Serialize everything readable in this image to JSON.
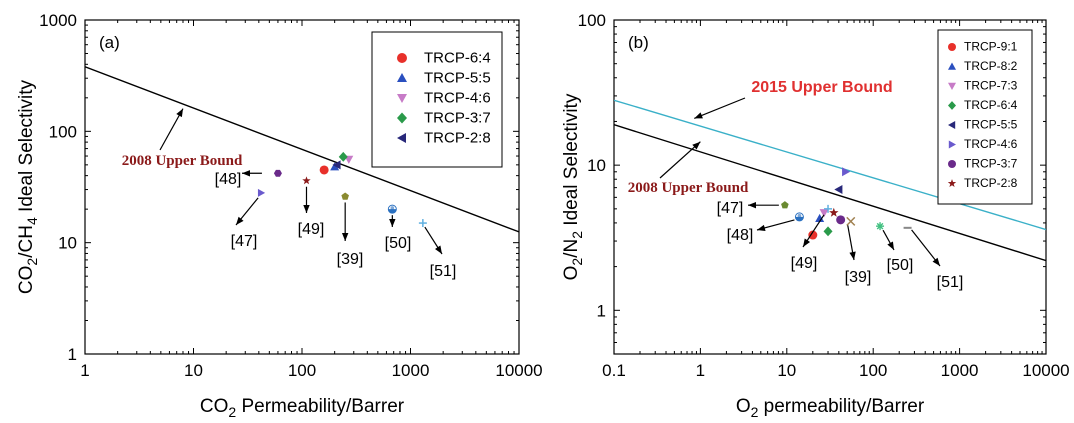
{
  "chart_data": [
    {
      "type": "scatter",
      "panel_label": "(a)",
      "xlabel": {
        "pre": "CO",
        "sub": "2",
        "post": " Permeability/Barrer"
      },
      "ylabel": {
        "p1": "CO",
        "s1": "2",
        "p2": "/CH",
        "s2": "4",
        "p3": " Ideal Selectivity"
      },
      "x_scale": "log",
      "y_scale": "log",
      "xlim": [
        1,
        10000
      ],
      "ylim": [
        1,
        1000
      ],
      "x_ticks": [
        "1",
        "10",
        "100",
        "1000",
        "10000"
      ],
      "y_ticks": [
        "1",
        "10",
        "100",
        "1000"
      ],
      "grid": false,
      "legend_position": "top-right",
      "series": [
        {
          "name": "TRCP-6:4",
          "marker": "circle",
          "color": "#e8302a",
          "points": [
            [
              160,
              45
            ]
          ]
        },
        {
          "name": "TRCP-5:5",
          "marker": "triangle-up",
          "color": "#2a4fbf",
          "points": [
            [
              200,
              48
            ]
          ]
        },
        {
          "name": "TRCP-4:6",
          "marker": "triangle-down",
          "color": "#c77bc7",
          "points": [
            [
              270,
              56
            ]
          ]
        },
        {
          "name": "TRCP-3:7",
          "marker": "diamond",
          "color": "#2a9a4a",
          "points": [
            [
              240,
              59
            ]
          ]
        },
        {
          "name": "TRCP-2:8",
          "marker": "triangle-left",
          "color": "#28287a",
          "points": [
            [
              210,
              50
            ]
          ]
        }
      ],
      "references": [
        {
          "label": "[48]",
          "x": 60,
          "y": 42,
          "marker": "hexagon",
          "color": "#6a2a8a"
        },
        {
          "label": "[47]",
          "x": 42,
          "y": 28,
          "marker": "triangle-right",
          "color": "#6a5acd"
        },
        {
          "label": "[49]",
          "x": 110,
          "y": 36,
          "marker": "star",
          "color": "#8b1a1a"
        },
        {
          "label": "[39]",
          "x": 250,
          "y": 26,
          "marker": "pentagon",
          "color": "#8a8a30"
        },
        {
          "label": "[50]",
          "x": 680,
          "y": 20,
          "marker": "half-circle",
          "color": "#2a70c0"
        },
        {
          "label": "[51]",
          "x": 1300,
          "y": 15,
          "marker": "plus",
          "color": "#60b0e0"
        }
      ],
      "bounds": [
        {
          "label": "2008 Upper Bound",
          "color": "#000000",
          "points": [
            [
              1,
              380
            ],
            [
              10000,
              12.5
            ]
          ]
        }
      ]
    },
    {
      "type": "scatter",
      "panel_label": "(b)",
      "xlabel": {
        "pre": "O",
        "sub": "2",
        "post": " permeability/Barrer"
      },
      "ylabel": {
        "p1": "O",
        "s1": "2",
        "p2": "/N",
        "s2": "2",
        "p3": "  Ideal Selectivity"
      },
      "x_scale": "log",
      "y_scale": "log",
      "xlim": [
        0.1,
        10000
      ],
      "ylim": [
        0.5,
        100
      ],
      "x_ticks": [
        "0.1",
        "1",
        "10",
        "100",
        "1000",
        "10000"
      ],
      "y_ticks": [
        "1",
        "10",
        "100"
      ],
      "grid": false,
      "legend_position": "top-right",
      "series": [
        {
          "name": "TRCP-9:1",
          "marker": "circle",
          "color": "#e8302a",
          "points": [
            [
              20,
              3.3
            ]
          ]
        },
        {
          "name": "TRCP-8:2",
          "marker": "triangle-up",
          "color": "#2a4fbf",
          "points": [
            [
              24,
              4.3
            ]
          ]
        },
        {
          "name": "TRCP-7:3",
          "marker": "triangle-down",
          "color": "#c77bc7",
          "points": [
            [
              27,
              4.7
            ]
          ]
        },
        {
          "name": "TRCP-6:4",
          "marker": "diamond",
          "color": "#2a9a4a",
          "points": [
            [
              30,
              3.5
            ]
          ]
        },
        {
          "name": "TRCP-5:5",
          "marker": "triangle-left",
          "color": "#28287a",
          "points": [
            [
              40,
              6.8
            ]
          ]
        },
        {
          "name": "TRCP-4:6",
          "marker": "triangle-right",
          "color": "#6a5acd",
          "points": [
            [
              48,
              9.0
            ]
          ]
        },
        {
          "name": "TRCP-3:7",
          "marker": "circle",
          "color": "#6a2a8a",
          "points": [
            [
              42,
              4.2
            ]
          ]
        },
        {
          "name": "TRCP-2:8",
          "marker": "star",
          "color": "#8b1a1a",
          "points": [
            [
              35,
              4.7
            ]
          ]
        }
      ],
      "references": [
        {
          "label": "[47]",
          "x": 9.5,
          "y": 5.3,
          "marker": "pentagon",
          "color": "#6a8a30"
        },
        {
          "label": "[48]",
          "x": 14,
          "y": 4.4,
          "marker": "half-circle",
          "color": "#2a70c0"
        },
        {
          "label": "[49]",
          "x": 30,
          "y": 5.0,
          "marker": "plus",
          "color": "#60b0e0"
        },
        {
          "label": "[39]",
          "x": 55,
          "y": 4.1,
          "marker": "x",
          "color": "#a08050"
        },
        {
          "label": "[50]",
          "x": 120,
          "y": 3.8,
          "marker": "asterisk",
          "color": "#40c080"
        },
        {
          "label": "[51]",
          "x": 250,
          "y": 3.7,
          "marker": "dash",
          "color": "#888888"
        }
      ],
      "bounds": [
        {
          "label": "2015 Upper Bound",
          "color": "#3ab0c8",
          "points": [
            [
              0.1,
              28
            ],
            [
              10000,
              3.6
            ]
          ]
        },
        {
          "label": "2008 Upper Bound",
          "color": "#000000",
          "points": [
            [
              0.1,
              19
            ],
            [
              10000,
              2.2
            ]
          ]
        }
      ]
    }
  ]
}
